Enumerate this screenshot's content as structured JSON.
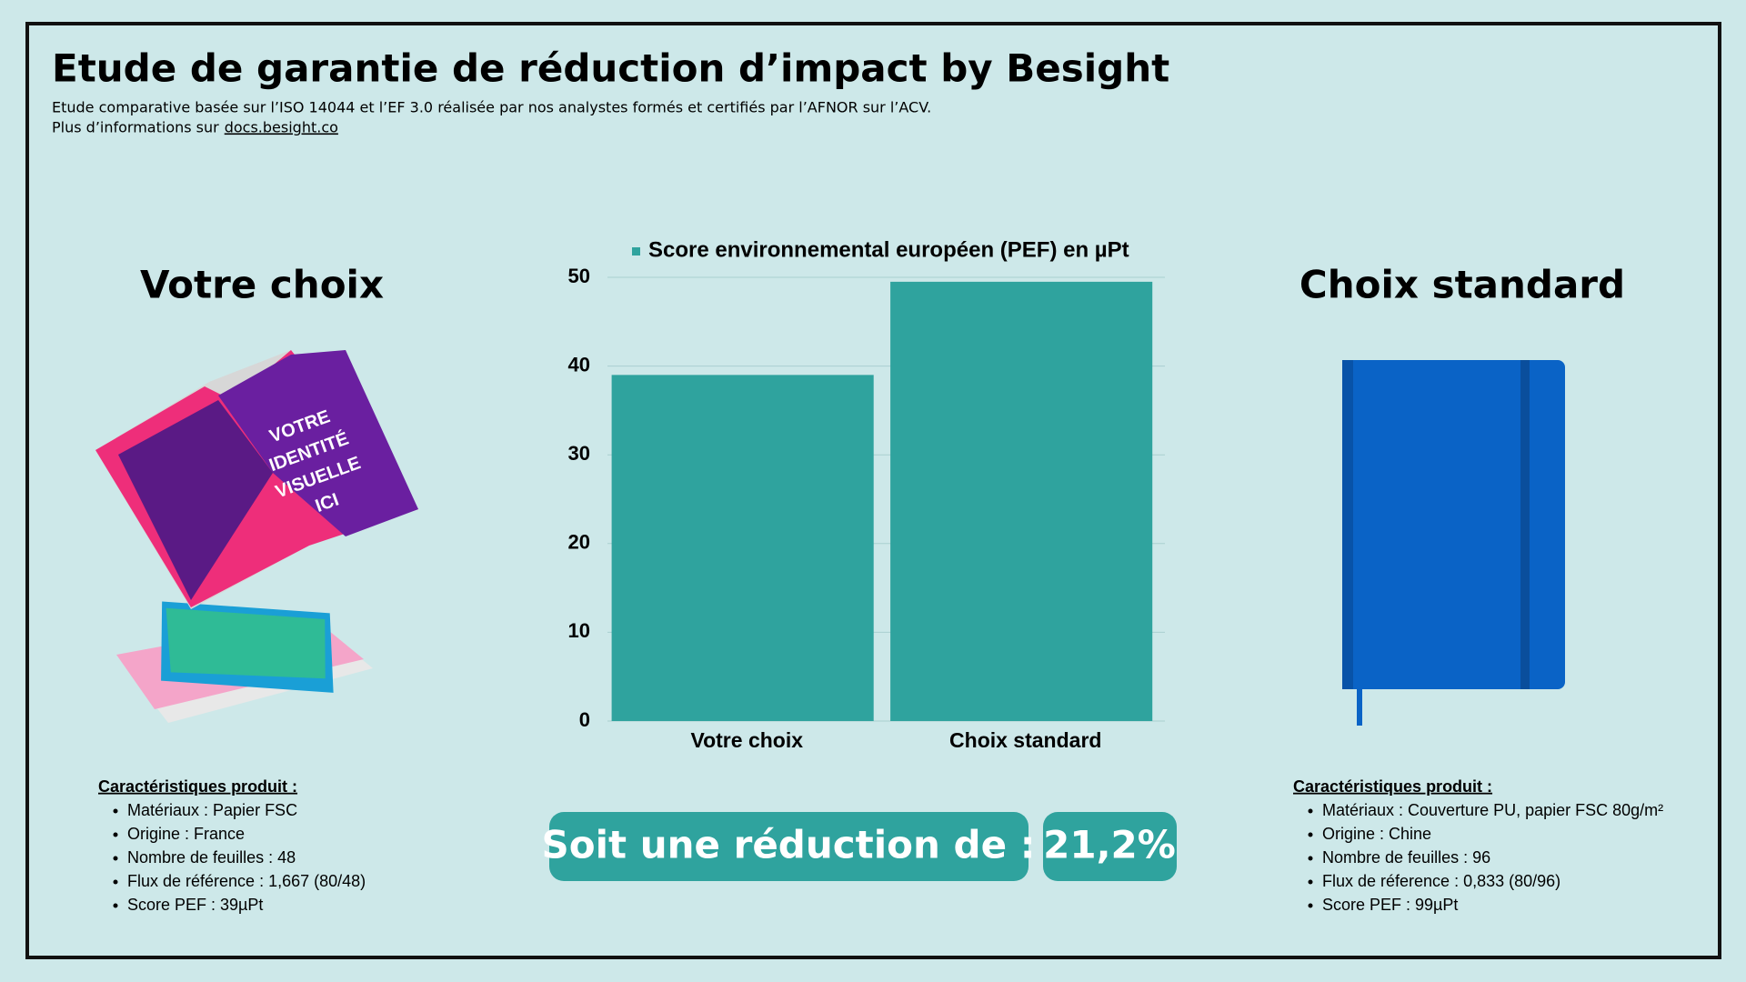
{
  "header": {
    "title": "Etude de garantie de réduction d’impact by Besight",
    "subtitle": "Etude comparative basée sur l’ISO 14044 et l’EF 3.0 réalisée par nos analystes formés et certifiés par l’AFNOR sur l’ACV.",
    "info_text": "Plus d’informations sur",
    "info_link": "docs.besight.co"
  },
  "left_product": {
    "heading": "Votre choix",
    "characteristics_title": "Caractéristiques produit :",
    "characteristics": [
      "Matériaux : Papier FSC",
      "Origine : France",
      "Nombre de feuilles : 48",
      "Flux de référence : 1,667 (80/48)",
      "Score PEF : 39µPt"
    ]
  },
  "right_product": {
    "heading": "Choix standard",
    "characteristics_title": "Caractéristiques produit :",
    "characteristics": [
      "Matériaux : Couverture PU, papier FSC 80g/m²",
      "Origine : Chine",
      "Nombre de feuilles : 96",
      "Flux de réference : 0,833 (80/96)",
      "Score PEF : 99µPt"
    ]
  },
  "chart_data": {
    "type": "bar",
    "categories": [
      "Votre choix",
      "Choix standard"
    ],
    "series": [
      {
        "name": "Score environnemental européen (PEF) en µPt",
        "color": "#2fa39e",
        "values": [
          39,
          49.5
        ]
      }
    ],
    "ylim": [
      0,
      50
    ],
    "yticks": [
      0,
      10,
      20,
      30,
      40,
      50
    ],
    "grid": true
  },
  "reduction": {
    "label": "Soit une réduction de :",
    "value": "21,2%"
  }
}
